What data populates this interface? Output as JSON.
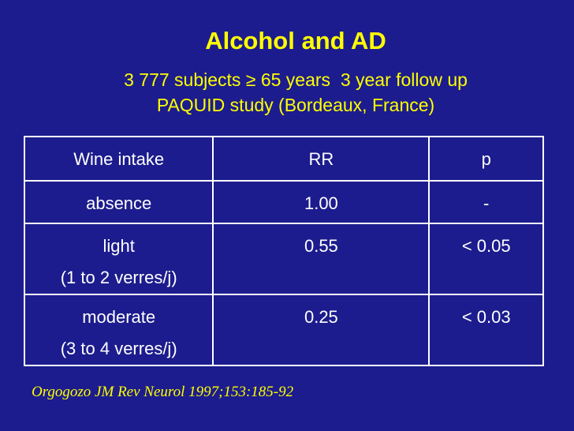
{
  "title": "Alcohol and AD",
  "subtitle": [
    "3 777 subjects ≥ 65 years  3 year follow up",
    "PAQUID study (Bordeaux, France)"
  ],
  "table": {
    "header": [
      "Wine intake",
      "RR",
      "p"
    ],
    "rows": [
      [
        [
          "absence"
        ],
        [
          "1.00"
        ],
        [
          "-"
        ]
      ],
      [
        [
          "light",
          "(1 to 2 verres/j)"
        ],
        [
          "0.55"
        ],
        [
          "< 0.05"
        ]
      ],
      [
        [
          "moderate",
          "(3 to 4 verres/j)"
        ],
        [
          "0.25"
        ],
        [
          "< 0.03"
        ]
      ]
    ]
  },
  "citation": "Orgogozo JM Rev Neurol 1997;153:185-92"
}
